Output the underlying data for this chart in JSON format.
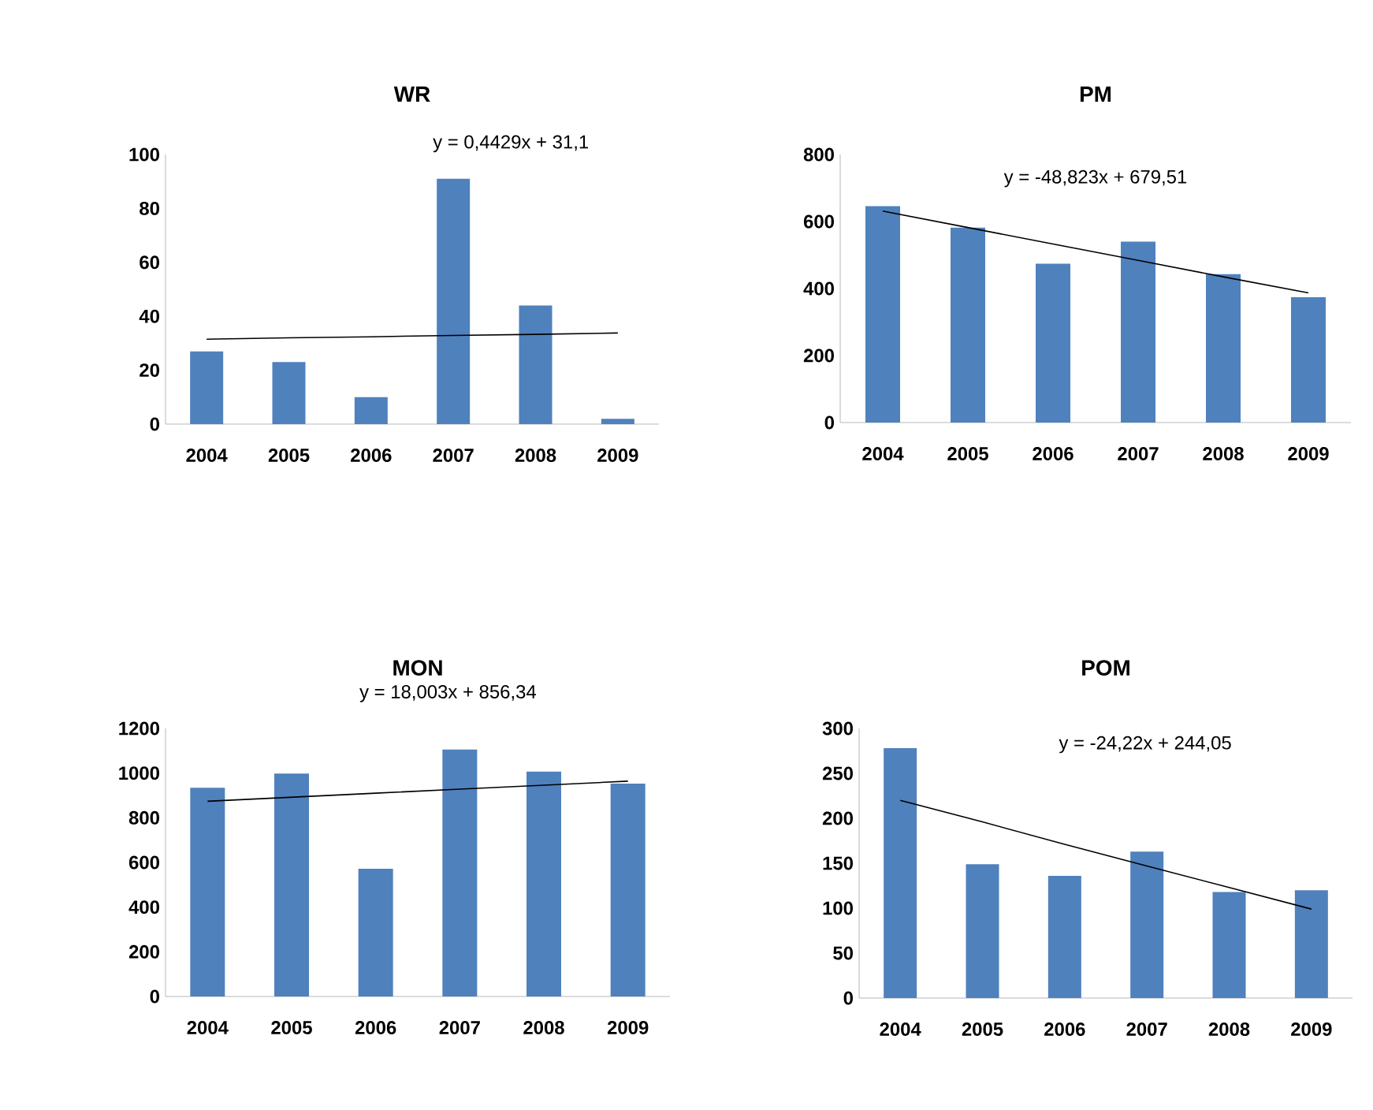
{
  "chart_data": [
    {
      "type": "bar",
      "title": "WR",
      "categories": [
        "2004",
        "2005",
        "2006",
        "2007",
        "2008",
        "2009"
      ],
      "ylim": [
        0,
        100
      ],
      "yticks": [
        0,
        20,
        40,
        60,
        80,
        100
      ],
      "annotations": [
        "y = 0,4429x + 31,1"
      ],
      "series": [
        {
          "color": "#4f81bd",
          "values": [
            27,
            23,
            10,
            91,
            44,
            2
          ]
        },
        {
          "type": "line",
          "color": "#000000",
          "values": [
            31.5,
            32,
            32.4,
            32.9,
            33.3,
            33.8
          ]
        }
      ]
    },
    {
      "type": "bar",
      "title": "PM",
      "categories": [
        "2004",
        "2005",
        "2006",
        "2007",
        "2008",
        "2009"
      ],
      "ylim": [
        0,
        800
      ],
      "yticks": [
        0,
        200,
        400,
        600,
        800
      ],
      "annotations": [
        "y = -48,823x + 679,51"
      ],
      "series": [
        {
          "color": "#4f81bd",
          "values": [
            646,
            582,
            474,
            540,
            443,
            374
          ]
        },
        {
          "type": "line",
          "color": "#000000",
          "values": [
            631,
            582,
            533,
            484,
            435,
            387
          ]
        }
      ]
    },
    {
      "type": "bar",
      "title": "MON",
      "categories": [
        "2004",
        "2005",
        "2006",
        "2007",
        "2008",
        "2009"
      ],
      "ylim": [
        0,
        1200
      ],
      "yticks": [
        0,
        200,
        400,
        600,
        800,
        1000,
        1200
      ],
      "annotations": [
        "y = 18,003x + 856,34"
      ],
      "series": [
        {
          "color": "#4f81bd",
          "values": [
            934,
            998,
            572,
            1106,
            1007,
            953
          ]
        },
        {
          "type": "line",
          "color": "#000000",
          "values": [
            874,
            892,
            910,
            928,
            946,
            964
          ]
        }
      ]
    },
    {
      "type": "bar",
      "title": "POM",
      "categories": [
        "2004",
        "2005",
        "2006",
        "2007",
        "2008",
        "2009"
      ],
      "ylim": [
        0,
        300
      ],
      "yticks": [
        0,
        50,
        100,
        150,
        200,
        250,
        300
      ],
      "annotations": [
        "y = -24,22x + 244,05"
      ],
      "series": [
        {
          "color": "#4f81bd",
          "values": [
            278,
            149,
            136,
            163,
            118,
            120
          ]
        },
        {
          "type": "line",
          "color": "#000000",
          "values": [
            220,
            196,
            171,
            147,
            123,
            99
          ]
        }
      ]
    }
  ]
}
